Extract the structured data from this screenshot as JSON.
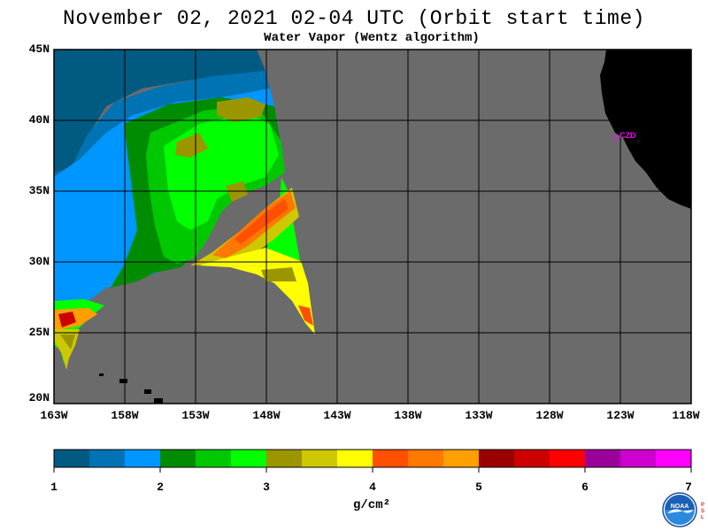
{
  "title": "November 02, 2021  02-04 UTC  (Orbit start time)",
  "subtitle": "Water Vapor (Wentz algorithm)",
  "map": {
    "lat_labels": [
      "45N",
      "40N",
      "35N",
      "30N",
      "25N",
      "20N"
    ],
    "lon_labels": [
      "163W",
      "158W",
      "153W",
      "148W",
      "143W",
      "138W",
      "133W",
      "128W",
      "123W",
      "118W"
    ],
    "station_label": "CZD",
    "station_color": "#ff00ff",
    "ocean_no_data_color": "#6b6b6b",
    "land_color": "#000000"
  },
  "colorbar": {
    "ticks": [
      "1",
      "2",
      "3",
      "4",
      "5",
      "6",
      "7"
    ],
    "unit": "g/cm²",
    "colors": [
      "#005a82",
      "#0073b4",
      "#0096ff",
      "#008c00",
      "#00c800",
      "#00ff00",
      "#9b9600",
      "#cdc800",
      "#ffff00",
      "#ff5000",
      "#ff7800",
      "#ffa000",
      "#9b0000",
      "#cd0000",
      "#ff0000",
      "#9b009b",
      "#cd00cd",
      "#ff00ff"
    ]
  },
  "logo": {
    "icon": "noaa-logo-icon",
    "text": "NOAA",
    "side_text": [
      "P",
      "S",
      "L"
    ]
  }
}
